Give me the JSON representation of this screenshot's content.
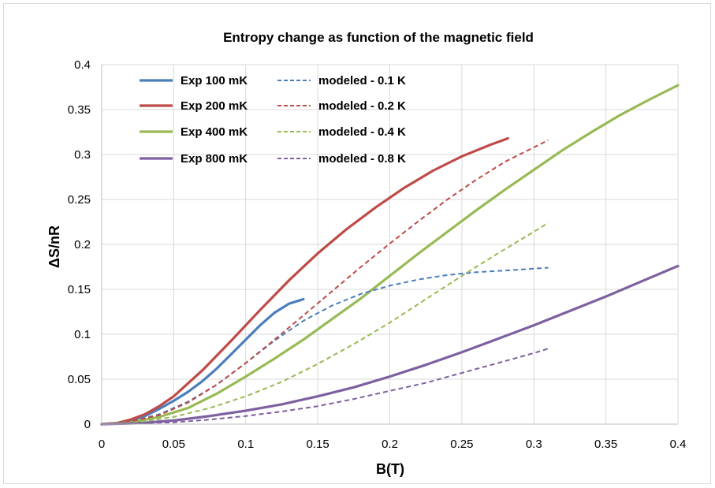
{
  "chart_data": {
    "type": "line",
    "title": "Entropy change as function of the magnetic field",
    "xlabel": "B(T)",
    "ylabel": "ΔS/nR",
    "xlim": [
      0,
      0.4
    ],
    "ylim": [
      0,
      0.4
    ],
    "xticks": [
      0,
      0.05,
      0.1,
      0.15,
      0.2,
      0.25,
      0.3,
      0.35,
      0.4
    ],
    "xtick_labels": [
      "0",
      "0.05",
      "0.1",
      "0.15",
      "0.2",
      "0.25",
      "0.3",
      "0.35",
      "0.4"
    ],
    "yticks": [
      0,
      0.05,
      0.1,
      0.15,
      0.2,
      0.25,
      0.3,
      0.35,
      0.4
    ],
    "ytick_labels": [
      "0",
      "0.05",
      "0.1",
      "0.15",
      "0.2",
      "0.25",
      "0.3",
      "0.35",
      "0.4"
    ],
    "grid": true,
    "legend_position": "top-left",
    "series": [
      {
        "name": "Exp 100 mK",
        "color": "#4a7ebb",
        "dash": false,
        "x": [
          0,
          0.01,
          0.02,
          0.03,
          0.04,
          0.05,
          0.06,
          0.07,
          0.08,
          0.09,
          0.1,
          0.11,
          0.12,
          0.13,
          0.14
        ],
        "y": [
          0,
          0.001,
          0.004,
          0.009,
          0.017,
          0.026,
          0.036,
          0.048,
          0.062,
          0.078,
          0.094,
          0.11,
          0.124,
          0.134,
          0.139
        ]
      },
      {
        "name": "Exp 200 mK",
        "color": "#be4b48",
        "dash": false,
        "x": [
          0,
          0.01,
          0.02,
          0.03,
          0.04,
          0.05,
          0.07,
          0.09,
          0.11,
          0.13,
          0.15,
          0.17,
          0.19,
          0.21,
          0.23,
          0.25,
          0.27,
          0.282
        ],
        "y": [
          0,
          0.001,
          0.005,
          0.011,
          0.02,
          0.031,
          0.06,
          0.093,
          0.127,
          0.16,
          0.19,
          0.217,
          0.241,
          0.263,
          0.282,
          0.298,
          0.311,
          0.318
        ]
      },
      {
        "name": "Exp 400 mK",
        "color": "#98b954",
        "dash": false,
        "x": [
          0,
          0.02,
          0.04,
          0.06,
          0.08,
          0.1,
          0.12,
          0.14,
          0.16,
          0.18,
          0.2,
          0.22,
          0.24,
          0.26,
          0.28,
          0.3,
          0.32,
          0.34,
          0.36,
          0.38,
          0.4
        ],
        "y": [
          0,
          0.002,
          0.008,
          0.018,
          0.034,
          0.053,
          0.073,
          0.094,
          0.117,
          0.14,
          0.165,
          0.19,
          0.214,
          0.238,
          0.261,
          0.283,
          0.305,
          0.325,
          0.344,
          0.361,
          0.377
        ]
      },
      {
        "name": "Exp 800 mK",
        "color": "#7d60a0",
        "dash": false,
        "x": [
          0,
          0.025,
          0.05,
          0.075,
          0.1,
          0.125,
          0.15,
          0.175,
          0.2,
          0.225,
          0.25,
          0.275,
          0.3,
          0.325,
          0.35,
          0.375,
          0.4
        ],
        "y": [
          0,
          0.001,
          0.004,
          0.009,
          0.015,
          0.022,
          0.031,
          0.041,
          0.053,
          0.066,
          0.08,
          0.095,
          0.11,
          0.126,
          0.142,
          0.159,
          0.176
        ]
      },
      {
        "name": "modeled - 0.1 K",
        "color": "#4a7ebb",
        "dash": true,
        "x": [
          0,
          0.02,
          0.04,
          0.06,
          0.08,
          0.1,
          0.12,
          0.14,
          0.16,
          0.18,
          0.2,
          0.22,
          0.24,
          0.26,
          0.28,
          0.3,
          0.31
        ],
        "y": [
          0,
          0.003,
          0.011,
          0.025,
          0.044,
          0.068,
          0.093,
          0.115,
          0.132,
          0.145,
          0.154,
          0.161,
          0.166,
          0.169,
          0.171,
          0.173,
          0.174
        ]
      },
      {
        "name": "modeled - 0.2 K",
        "color": "#be4b48",
        "dash": true,
        "x": [
          0,
          0.02,
          0.04,
          0.06,
          0.08,
          0.1,
          0.12,
          0.14,
          0.16,
          0.18,
          0.2,
          0.22,
          0.24,
          0.26,
          0.28,
          0.31
        ],
        "y": [
          0,
          0.003,
          0.01,
          0.024,
          0.044,
          0.068,
          0.094,
          0.121,
          0.148,
          0.175,
          0.201,
          0.226,
          0.25,
          0.272,
          0.292,
          0.316
        ]
      },
      {
        "name": "modeled - 0.4 K",
        "color": "#98b954",
        "dash": true,
        "x": [
          0,
          0.025,
          0.05,
          0.075,
          0.1,
          0.125,
          0.15,
          0.175,
          0.2,
          0.225,
          0.25,
          0.275,
          0.3,
          0.31
        ],
        "y": [
          0,
          0.002,
          0.008,
          0.018,
          0.031,
          0.047,
          0.067,
          0.089,
          0.113,
          0.139,
          0.165,
          0.19,
          0.214,
          0.224
        ]
      },
      {
        "name": "modeled - 0.8 K",
        "color": "#7d60a0",
        "dash": true,
        "x": [
          0,
          0.025,
          0.05,
          0.075,
          0.1,
          0.125,
          0.15,
          0.175,
          0.2,
          0.225,
          0.25,
          0.275,
          0.3,
          0.31
        ],
        "y": [
          0,
          0.001,
          0.002,
          0.005,
          0.009,
          0.014,
          0.02,
          0.028,
          0.037,
          0.046,
          0.057,
          0.068,
          0.079,
          0.084
        ]
      }
    ]
  }
}
